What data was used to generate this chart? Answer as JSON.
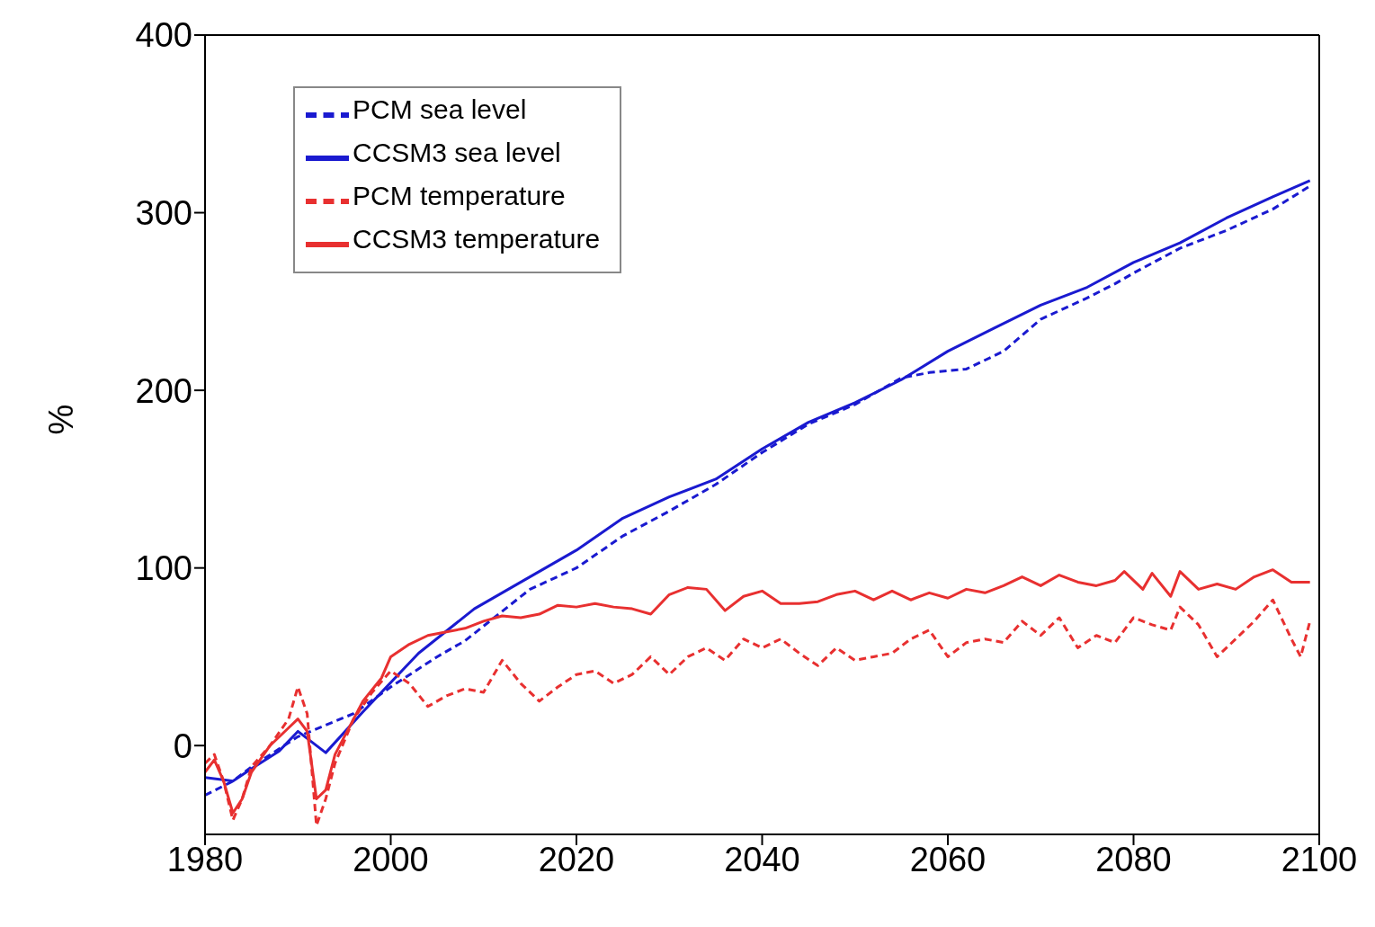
{
  "chart_data": {
    "type": "line",
    "ylabel": "%",
    "xlim": [
      1980,
      2100
    ],
    "xticks": [
      1980,
      2000,
      2020,
      2040,
      2060,
      2080,
      2100
    ],
    "ylim": [
      -50,
      400
    ],
    "yticks": [
      0,
      100,
      200,
      300,
      400
    ],
    "legend": "top left",
    "marker": "none",
    "series": [
      {
        "name": "PCM sea level",
        "color": "#1a1ad0",
        "line_style": "dashed",
        "x": [
          1980,
          1983,
          1985,
          1990,
          1996,
          2000,
          2005,
          2008,
          2015,
          2020,
          2025,
          2030,
          2035,
          2040,
          2045,
          2050,
          2055,
          2058,
          2062,
          2066,
          2070,
          2075,
          2078,
          2080,
          2085,
          2090,
          2095,
          2099
        ],
        "values": [
          -28,
          -20,
          -12,
          5,
          18,
          33,
          50,
          59,
          88,
          100,
          118,
          132,
          147,
          165,
          181,
          192,
          207,
          210,
          212,
          222,
          240,
          252,
          260,
          266,
          280,
          290,
          302,
          315
        ]
      },
      {
        "name": "CCSM3 sea level",
        "color": "#1a1ad0",
        "line_style": "solid",
        "x": [
          1980,
          1983,
          1985,
          1988,
          1990,
          1993,
          1997,
          2003,
          2009,
          2013,
          2020,
          2025,
          2030,
          2035,
          2040,
          2045,
          2050,
          2055,
          2060,
          2065,
          2070,
          2075,
          2080,
          2085,
          2090,
          2095,
          2099
        ],
        "values": [
          -18,
          -20,
          -13,
          -3,
          8,
          -4,
          19,
          52,
          77,
          89,
          110,
          128,
          140,
          150,
          167,
          182,
          193,
          206,
          222,
          235,
          248,
          258,
          272,
          283,
          297,
          309,
          318
        ]
      },
      {
        "name": "PCM temperature",
        "color": "#e83030",
        "line_style": "dashed",
        "x": [
          1980,
          1981,
          1982,
          1983,
          1984,
          1985,
          1987,
          1989,
          1990,
          1991,
          1992,
          1993,
          1994,
          1996,
          1998,
          2000,
          2002,
          2004,
          2006,
          2008,
          2010,
          2012,
          2014,
          2016,
          2018,
          2020,
          2022,
          2024,
          2026,
          2028,
          2030,
          2032,
          2034,
          2036,
          2038,
          2040,
          2042,
          2044,
          2046,
          2048,
          2050,
          2052,
          2054,
          2056,
          2058,
          2060,
          2062,
          2064,
          2066,
          2068,
          2070,
          2072,
          2074,
          2076,
          2078,
          2080,
          2082,
          2084,
          2085,
          2087,
          2089,
          2091,
          2093,
          2095,
          2097,
          2098,
          2099
        ],
        "values": [
          -10,
          -5,
          -20,
          -42,
          -30,
          -12,
          0,
          15,
          33,
          18,
          -45,
          -30,
          -10,
          15,
          30,
          42,
          35,
          22,
          28,
          32,
          30,
          48,
          35,
          25,
          33,
          40,
          42,
          35,
          40,
          50,
          40,
          50,
          55,
          48,
          60,
          55,
          60,
          52,
          45,
          55,
          48,
          50,
          52,
          60,
          65,
          50,
          58,
          60,
          58,
          70,
          62,
          72,
          55,
          62,
          58,
          72,
          68,
          65,
          78,
          68,
          50,
          60,
          70,
          82,
          60,
          50,
          70
        ]
      },
      {
        "name": "CCSM3 temperature",
        "color": "#e83030",
        "line_style": "solid",
        "x": [
          1980,
          1981,
          1982,
          1983,
          1984,
          1985,
          1987,
          1989,
          1990,
          1991,
          1992,
          1993,
          1994,
          1996,
          1997,
          1999,
          2000,
          2002,
          2004,
          2006,
          2008,
          2010,
          2012,
          2014,
          2016,
          2018,
          2020,
          2022,
          2024,
          2026,
          2028,
          2030,
          2032,
          2034,
          2036,
          2038,
          2040,
          2042,
          2044,
          2046,
          2048,
          2050,
          2052,
          2054,
          2056,
          2058,
          2060,
          2062,
          2064,
          2066,
          2068,
          2070,
          2072,
          2074,
          2076,
          2078,
          2079,
          2081,
          2082,
          2084,
          2085,
          2087,
          2089,
          2091,
          2093,
          2095,
          2097,
          2099
        ],
        "values": [
          -15,
          -8,
          -20,
          -38,
          -30,
          -15,
          0,
          10,
          15,
          8,
          -30,
          -25,
          -5,
          15,
          25,
          38,
          50,
          57,
          62,
          64,
          66,
          70,
          73,
          72,
          74,
          79,
          78,
          80,
          78,
          77,
          74,
          85,
          89,
          88,
          76,
          84,
          87,
          80,
          80,
          81,
          85,
          87,
          82,
          87,
          82,
          86,
          83,
          88,
          86,
          90,
          95,
          90,
          96,
          92,
          90,
          93,
          98,
          88,
          97,
          84,
          98,
          88,
          91,
          88,
          95,
          99,
          92,
          92
        ]
      }
    ]
  }
}
